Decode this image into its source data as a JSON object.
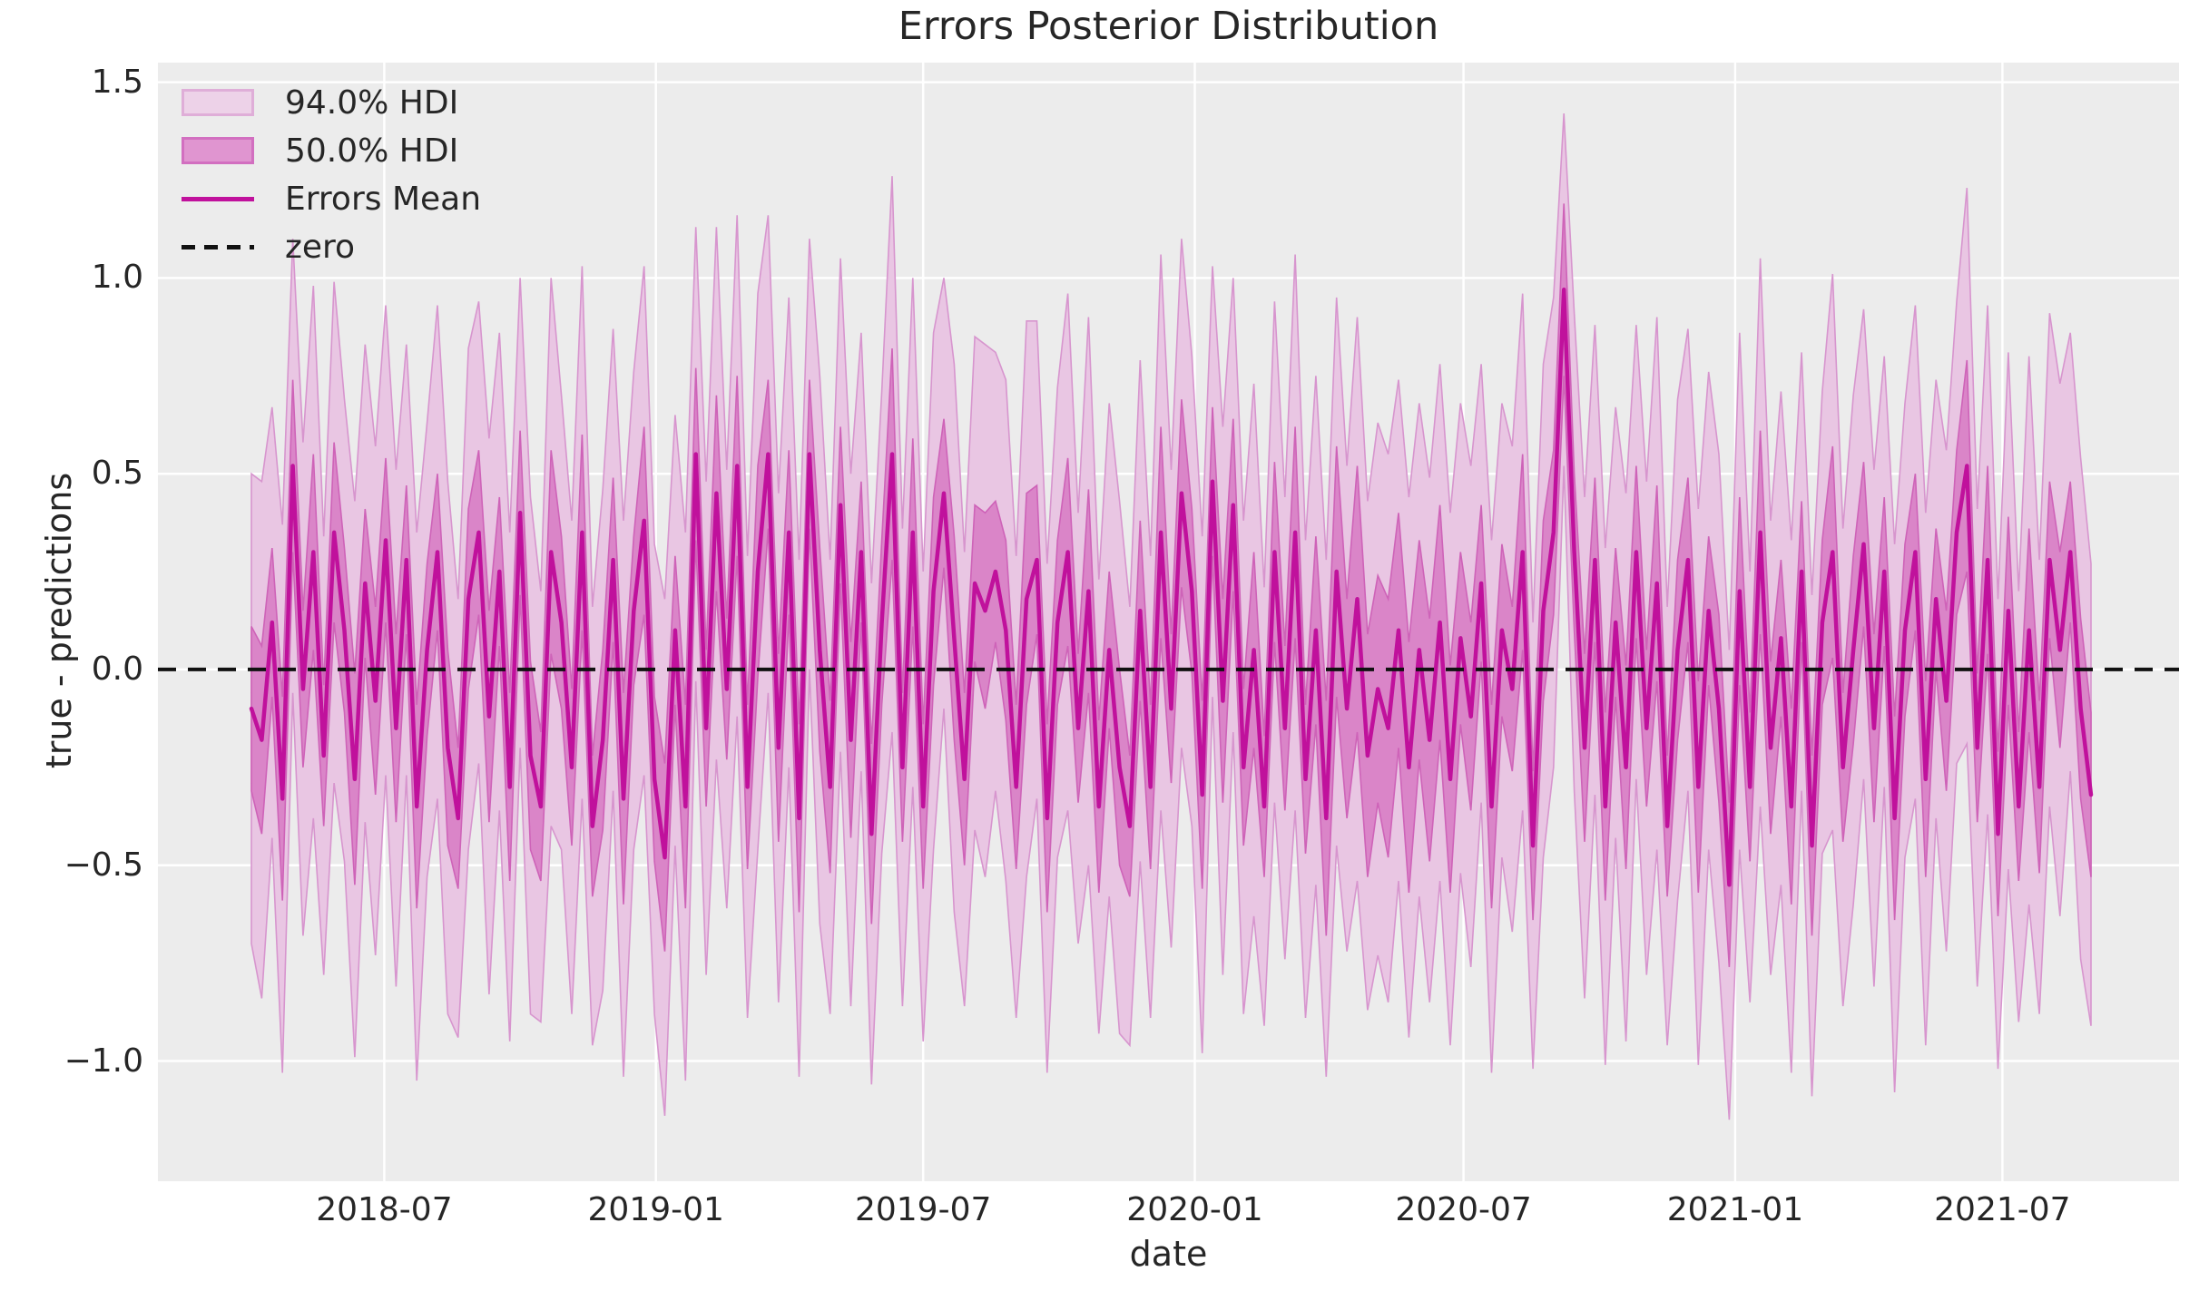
{
  "title": "Errors Posterior Distribution",
  "axes": {
    "xlabel": "date",
    "ylabel": "true - predictions",
    "background_color": "#ececec",
    "grid_color": "#ffffff",
    "text_color": "#262626",
    "ytick_values": [
      1.5,
      1.0,
      0.5,
      0.0,
      -0.5,
      -1.0
    ],
    "ytick_labels": [
      "1.5",
      "1.0",
      "0.5",
      "0.0",
      "−0.5",
      "−1.0"
    ],
    "xtick_dates": [
      "2018-07-01",
      "2019-01-01",
      "2019-07-01",
      "2020-01-01",
      "2020-07-01",
      "2021-01-01",
      "2021-07-01"
    ],
    "xtick_labels": [
      "2018-07",
      "2019-01",
      "2019-07",
      "2020-01",
      "2020-07",
      "2021-01",
      "2021-07"
    ],
    "ylim": [
      -1.307,
      1.55
    ],
    "xlim_dates": [
      "2018-01-29",
      "2021-10-29"
    ],
    "grid": true
  },
  "legend": {
    "position": "upper-left",
    "items": [
      {
        "label": "94.0% HDI",
        "type": "patch",
        "fill": "#edd2e8",
        "edge": "#dfaed8"
      },
      {
        "label": "50.0% HDI",
        "type": "patch",
        "fill": "#e095d0",
        "edge": "#d26fc0"
      },
      {
        "label": "Errors Mean",
        "type": "line",
        "color": "#c0119c"
      },
      {
        "label": "zero",
        "type": "dashed-line",
        "color": "#111111"
      }
    ]
  },
  "chart_data": {
    "type": "line",
    "title": "Errors Posterior Distribution",
    "xlabel": "date",
    "ylabel": "true - predictions",
    "x_start_date": "2018-04-02",
    "x_freq_days": 7,
    "n_points": 179,
    "colors": {
      "hdi94_fill": "#e9c6e3",
      "hdi94_edge": "#d795ce",
      "hdi50_fill": "#da85c8",
      "hdi50_edge": "#ce63b8",
      "mean_line": "#c0119c",
      "zero_line": "#111111"
    },
    "series": [
      {
        "name": "Errors Mean",
        "values": [
          -0.1,
          -0.18,
          0.12,
          -0.33,
          0.52,
          -0.05,
          0.3,
          -0.22,
          0.35,
          0.1,
          -0.28,
          0.22,
          -0.08,
          0.33,
          -0.15,
          0.28,
          -0.35,
          0.05,
          0.3,
          -0.2,
          -0.38,
          0.18,
          0.35,
          -0.12,
          0.25,
          -0.3,
          0.4,
          -0.22,
          -0.35,
          0.3,
          0.12,
          -0.25,
          0.35,
          -0.4,
          -0.18,
          0.28,
          -0.33,
          0.15,
          0.38,
          -0.28,
          -0.48,
          0.1,
          -0.35,
          0.55,
          -0.15,
          0.45,
          -0.05,
          0.52,
          -0.3,
          0.25,
          0.55,
          -0.2,
          0.35,
          -0.38,
          0.55,
          0.05,
          -0.3,
          0.42,
          -0.18,
          0.3,
          -0.42,
          0.12,
          0.55,
          -0.25,
          0.35,
          -0.35,
          0.2,
          0.45,
          0.08,
          -0.28,
          0.22,
          0.15,
          0.25,
          0.1,
          -0.3,
          0.18,
          0.28,
          -0.38,
          0.12,
          0.3,
          -0.15,
          0.2,
          -0.35,
          0.05,
          -0.25,
          -0.4,
          0.15,
          -0.3,
          0.35,
          -0.1,
          0.45,
          0.2,
          -0.32,
          0.48,
          -0.08,
          0.42,
          -0.25,
          0.05,
          -0.35,
          0.3,
          -0.15,
          0.35,
          -0.28,
          0.1,
          -0.38,
          0.25,
          -0.1,
          0.18,
          -0.22,
          -0.05,
          -0.15,
          0.1,
          -0.25,
          0.05,
          -0.18,
          0.12,
          -0.28,
          0.08,
          -0.12,
          0.22,
          -0.35,
          0.1,
          -0.05,
          0.3,
          -0.45,
          0.15,
          0.35,
          0.97,
          0.3,
          -0.2,
          0.28,
          -0.35,
          0.12,
          -0.25,
          0.3,
          -0.15,
          0.22,
          -0.4,
          0.05,
          0.28,
          -0.3,
          0.15,
          -0.1,
          -0.55,
          0.2,
          -0.3,
          0.35,
          -0.2,
          0.08,
          -0.35,
          0.25,
          -0.45,
          0.12,
          0.3,
          -0.25,
          0.05,
          0.32,
          -0.15,
          0.25,
          -0.38,
          0.1,
          0.3,
          -0.28,
          0.18,
          -0.08,
          0.35,
          0.52,
          -0.2,
          0.28,
          -0.42,
          0.15,
          -0.35,
          0.1,
          -0.3,
          0.28,
          0.05,
          0.3,
          -0.1,
          -0.32
        ]
      },
      {
        "name": "50.0% HDI",
        "half_widths": [
          0.21,
          0.24,
          0.19,
          0.26,
          0.22,
          0.2,
          0.25,
          0.18,
          0.23,
          0.21,
          0.27,
          0.19,
          0.24,
          0.21,
          0.24,
          0.19,
          0.26,
          0.22,
          0.2,
          0.25,
          0.18,
          0.23,
          0.21,
          0.27,
          0.19,
          0.24,
          0.21,
          0.24,
          0.19,
          0.26,
          0.22,
          0.2,
          0.25,
          0.18,
          0.23,
          0.21,
          0.27,
          0.19,
          0.24,
          0.21,
          0.24,
          0.19,
          0.26,
          0.22,
          0.2,
          0.25,
          0.18,
          0.23,
          0.21,
          0.27,
          0.19,
          0.24,
          0.21,
          0.24,
          0.19,
          0.26,
          0.22,
          0.2,
          0.25,
          0.18,
          0.23,
          0.21,
          0.27,
          0.19,
          0.24,
          0.21,
          0.24,
          0.19,
          0.26,
          0.22,
          0.2,
          0.25,
          0.18,
          0.23,
          0.21,
          0.27,
          0.19,
          0.24,
          0.21,
          0.24,
          0.19,
          0.26,
          0.22,
          0.2,
          0.25,
          0.18,
          0.23,
          0.21,
          0.27,
          0.19,
          0.24,
          0.21,
          0.24,
          0.19,
          0.26,
          0.22,
          0.2,
          0.25,
          0.18,
          0.23,
          0.21,
          0.27,
          0.19,
          0.24,
          0.3,
          0.32,
          0.28,
          0.34,
          0.31,
          0.29,
          0.33,
          0.3,
          0.32,
          0.28,
          0.31,
          0.3,
          0.29,
          0.22,
          0.24,
          0.2,
          0.26,
          0.22,
          0.21,
          0.25,
          0.19,
          0.23,
          0.21,
          0.22,
          0.2,
          0.24,
          0.21,
          0.24,
          0.19,
          0.26,
          0.22,
          0.2,
          0.25,
          0.18,
          0.23,
          0.21,
          0.27,
          0.19,
          0.24,
          0.21,
          0.24,
          0.19,
          0.26,
          0.22,
          0.2,
          0.25,
          0.18,
          0.23,
          0.21,
          0.27,
          0.19,
          0.24,
          0.21,
          0.24,
          0.19,
          0.26,
          0.22,
          0.2,
          0.25,
          0.18,
          0.23,
          0.21,
          0.27,
          0.19,
          0.24,
          0.21,
          0.24,
          0.19,
          0.26,
          0.22,
          0.2,
          0.25,
          0.18,
          0.23,
          0.21
        ]
      },
      {
        "name": "94.0% HDI",
        "half_widths": [
          0.6,
          0.66,
          0.55,
          0.7,
          0.58,
          0.63,
          0.68,
          0.56,
          0.64,
          0.59,
          0.71,
          0.61,
          0.65,
          0.6,
          0.66,
          0.55,
          0.7,
          0.58,
          0.63,
          0.68,
          0.56,
          0.64,
          0.59,
          0.71,
          0.61,
          0.65,
          0.6,
          0.66,
          0.55,
          0.7,
          0.58,
          0.63,
          0.68,
          0.56,
          0.64,
          0.59,
          0.71,
          0.61,
          0.65,
          0.6,
          0.66,
          0.55,
          0.7,
          0.58,
          0.63,
          0.68,
          0.56,
          0.64,
          0.59,
          0.71,
          0.61,
          0.65,
          0.6,
          0.66,
          0.55,
          0.7,
          0.58,
          0.63,
          0.68,
          0.56,
          0.64,
          0.59,
          0.71,
          0.61,
          0.65,
          0.6,
          0.66,
          0.55,
          0.7,
          0.58,
          0.63,
          0.68,
          0.56,
          0.64,
          0.59,
          0.71,
          0.61,
          0.65,
          0.6,
          0.66,
          0.55,
          0.7,
          0.58,
          0.63,
          0.68,
          0.56,
          0.64,
          0.59,
          0.71,
          0.61,
          0.65,
          0.6,
          0.66,
          0.55,
          0.7,
          0.58,
          0.63,
          0.68,
          0.56,
          0.64,
          0.59,
          0.71,
          0.61,
          0.65,
          0.66,
          0.7,
          0.62,
          0.72,
          0.65,
          0.68,
          0.7,
          0.64,
          0.69,
          0.63,
          0.67,
          0.66,
          0.68,
          0.6,
          0.64,
          0.56,
          0.68,
          0.58,
          0.62,
          0.66,
          0.57,
          0.63,
          0.6,
          0.45,
          0.61,
          0.64,
          0.6,
          0.66,
          0.55,
          0.7,
          0.58,
          0.63,
          0.68,
          0.56,
          0.64,
          0.59,
          0.71,
          0.61,
          0.65,
          0.6,
          0.66,
          0.55,
          0.7,
          0.58,
          0.63,
          0.68,
          0.56,
          0.64,
          0.59,
          0.71,
          0.61,
          0.65,
          0.6,
          0.66,
          0.55,
          0.7,
          0.58,
          0.63,
          0.68,
          0.56,
          0.64,
          0.59,
          0.71,
          0.61,
          0.65,
          0.6,
          0.66,
          0.55,
          0.7,
          0.58,
          0.63,
          0.68,
          0.56,
          0.64,
          0.59
        ]
      }
    ],
    "reference_line": {
      "label": "zero",
      "value": 0.0,
      "style": "dashed",
      "color": "#111111"
    }
  }
}
